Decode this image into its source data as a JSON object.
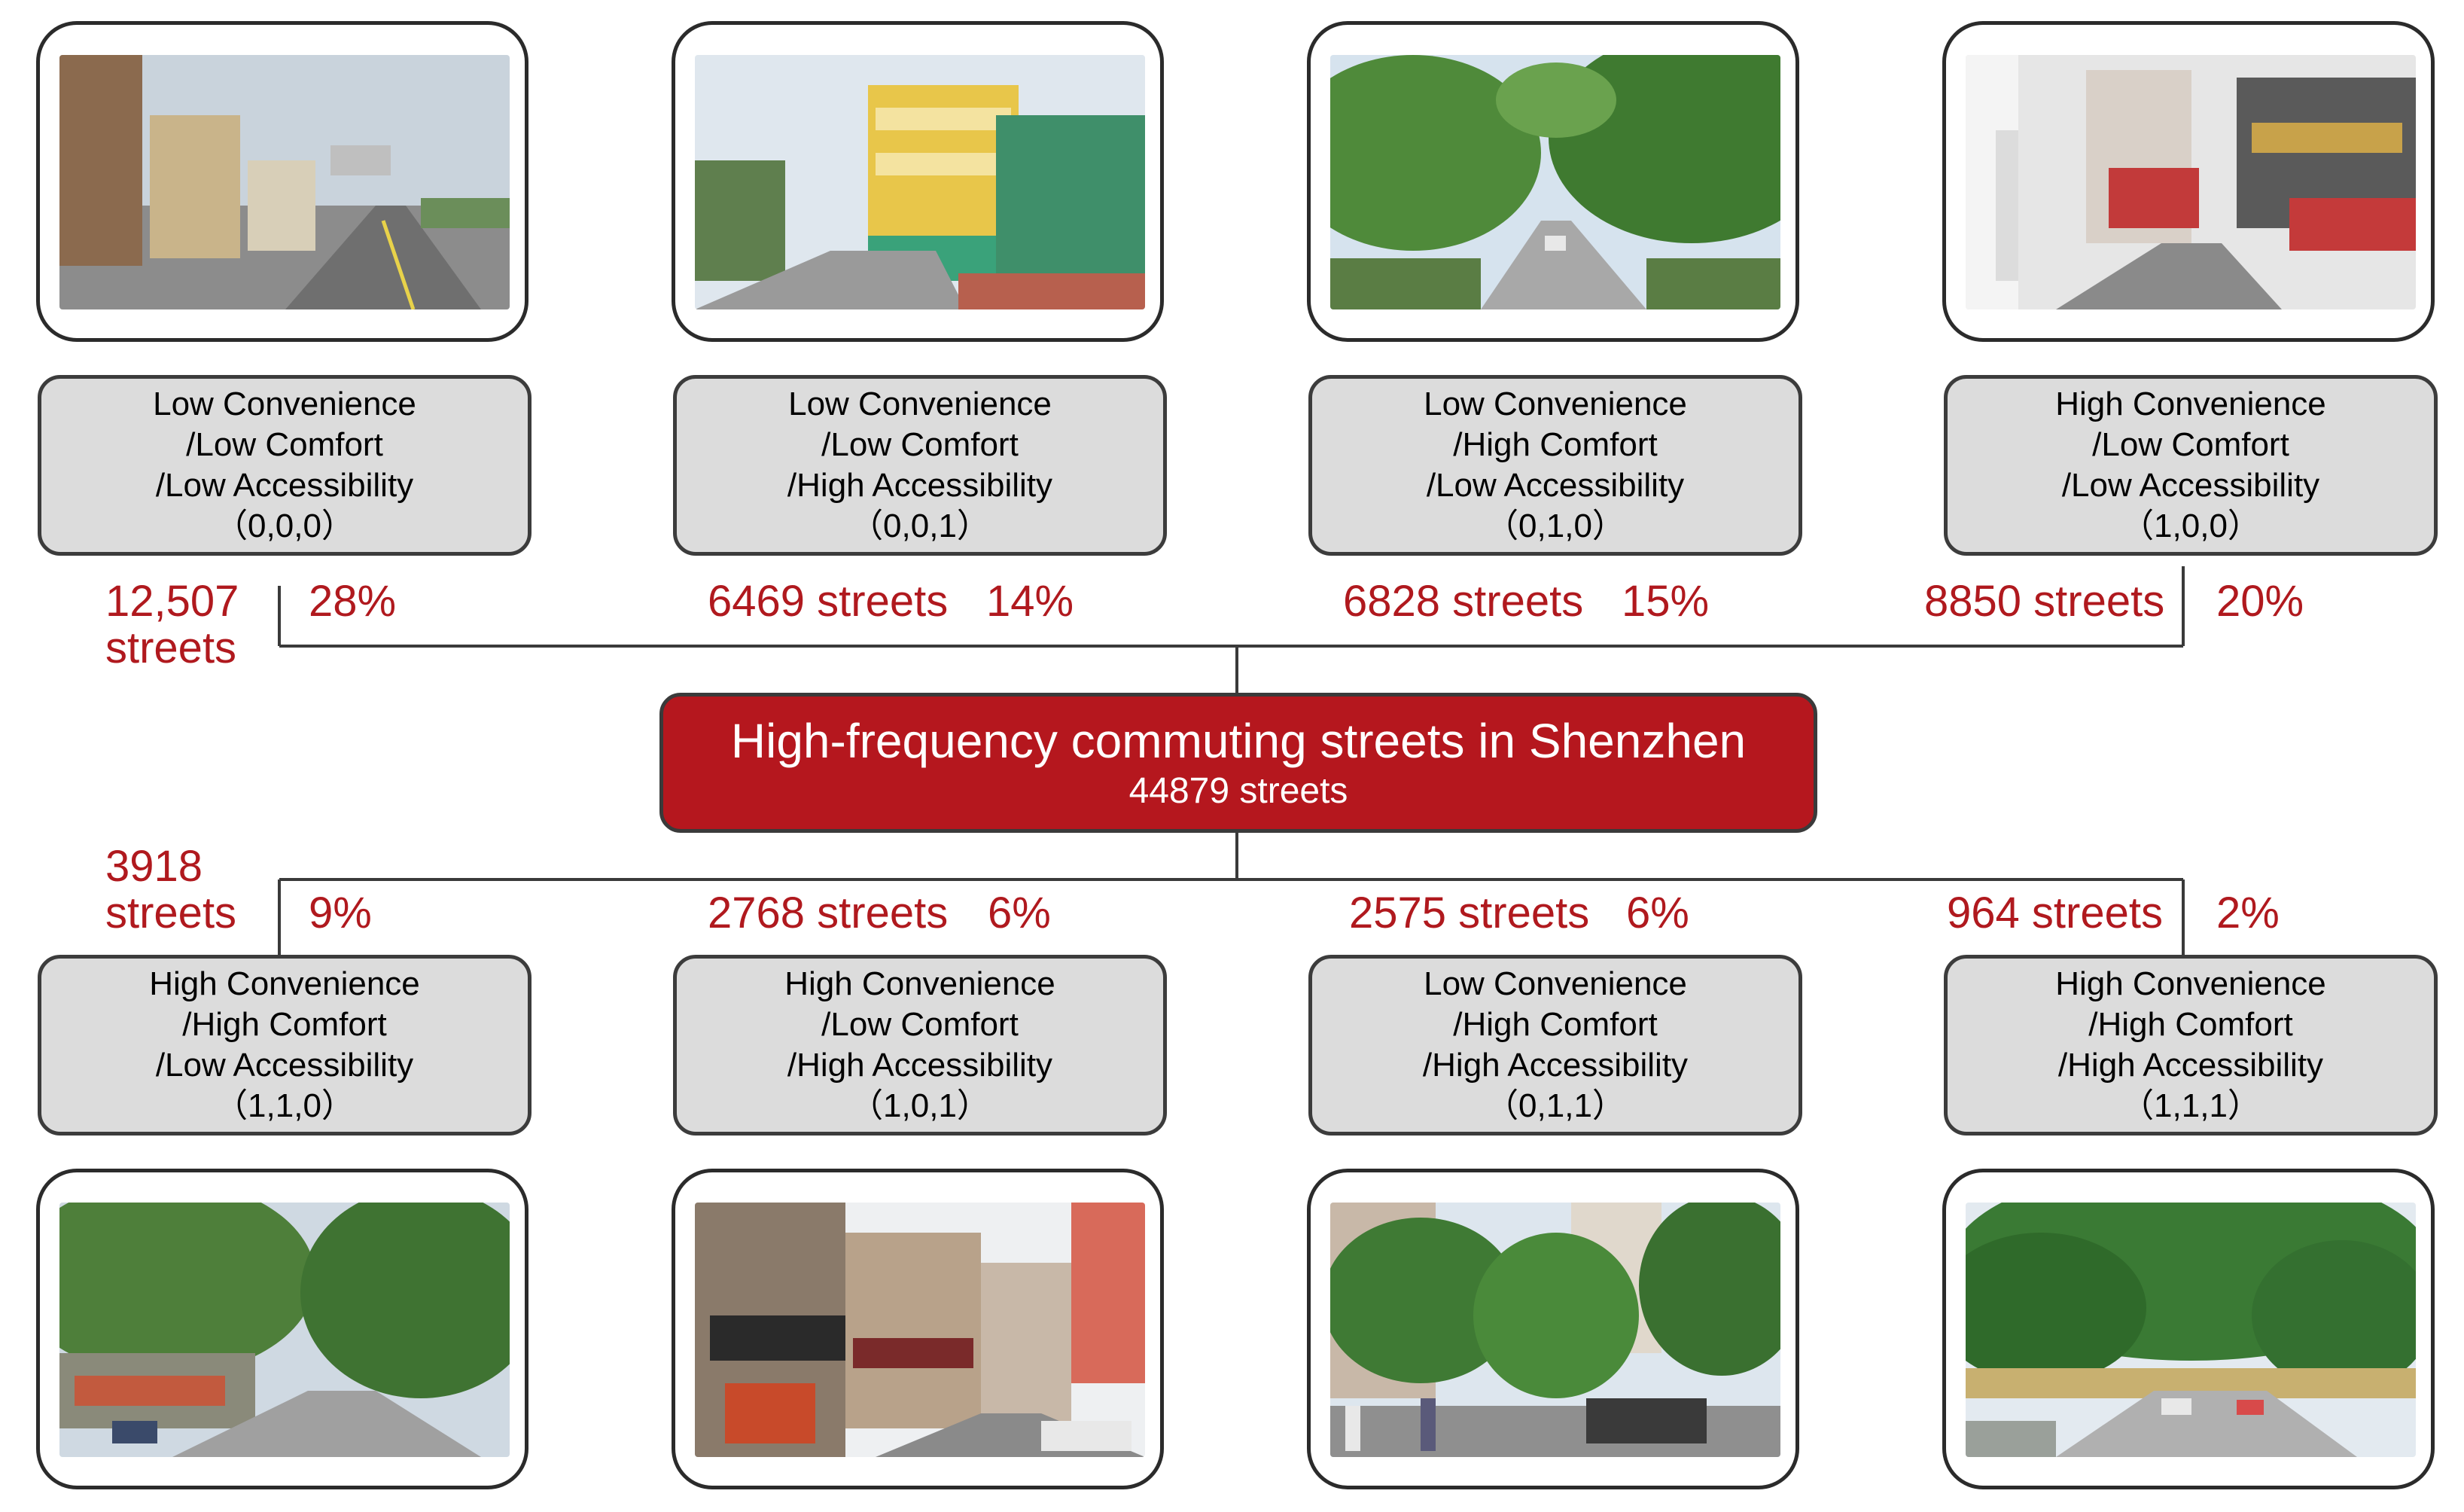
{
  "colors": {
    "accent_red": "#b0191e",
    "center_fill": "#b5171e",
    "box_fill": "#dcdcdc",
    "line": "#3a3a3a"
  },
  "center": {
    "title": "High-frequency commuting streets in Shenzhen",
    "subtitle": "44879 streets"
  },
  "top_categories": [
    {
      "lines": [
        "Low Convenience",
        "/Low Comfort",
        "/Low Accessibility",
        "（0,0,0）"
      ],
      "count": "12,507 streets",
      "count_line1": "12,507",
      "count_line2": "streets",
      "percent": "28%",
      "photo": "street-photo-suburban-road"
    },
    {
      "lines": [
        "Low Convenience",
        "/Low Comfort",
        "/High Accessibility",
        "（0,0,1）"
      ],
      "count": "6469 streets",
      "percent": "14%",
      "photo": "street-photo-school-building"
    },
    {
      "lines": [
        "Low Convenience",
        "/High Comfort",
        "/Low Accessibility",
        "（0,1,0）"
      ],
      "count": "6828 streets",
      "percent": "15%",
      "photo": "street-photo-tree-lined-avenue"
    },
    {
      "lines": [
        "High Convenience",
        "/Low Comfort",
        "/Low Accessibility",
        "（1,0,0）"
      ],
      "count": "8850 streets",
      "percent": "20%",
      "photo": "street-photo-commercial-street"
    }
  ],
  "bottom_categories": [
    {
      "lines": [
        "High Convenience",
        "/High Comfort",
        "/Low Accessibility",
        "（1,1,0）"
      ],
      "count": "3918 streets",
      "count_line1": "3918",
      "count_line2": "streets",
      "percent": "9%",
      "photo": "street-photo-shaded-road"
    },
    {
      "lines": [
        "High Convenience",
        "/Low Comfort",
        "/High Accessibility",
        "（1,0,1）"
      ],
      "count": "2768 streets",
      "percent": "6%",
      "photo": "street-photo-shop-signs"
    },
    {
      "lines": [
        "Low Convenience",
        "/High Comfort",
        "/High Accessibility",
        "（0,1,1）"
      ],
      "count": "2575 streets",
      "percent": "6%",
      "photo": "street-photo-pedestrians-trees"
    },
    {
      "lines": [
        "High Convenience",
        "/High Comfort",
        "/High Accessibility",
        "（1,1,1）"
      ],
      "count": "964 streets",
      "percent": "2%",
      "photo": "street-photo-green-boulevard"
    }
  ]
}
